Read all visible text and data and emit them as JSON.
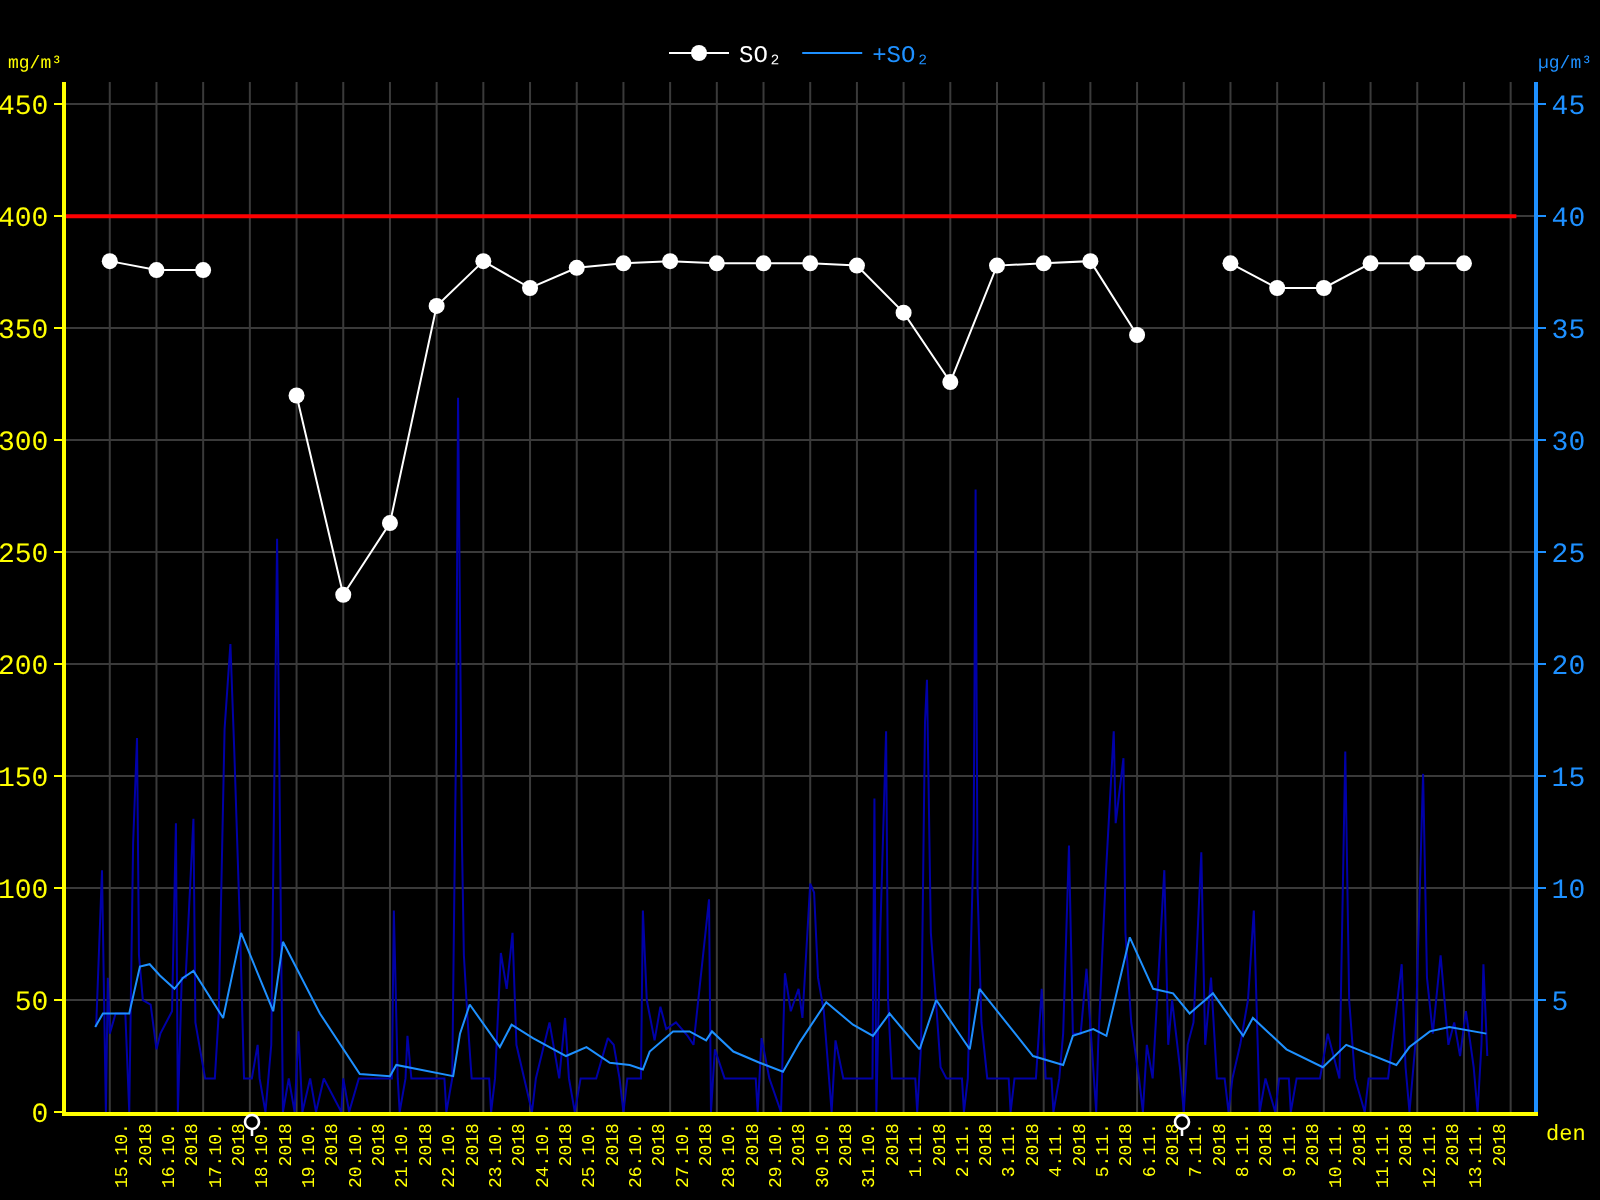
{
  "chart_data": {
    "type": "line",
    "xlabel": "den",
    "ylabel": "mg/m³",
    "y2label": "µg/m³",
    "xlim": [
      "2018-10-14T01:30",
      "2018-11-14T12:00"
    ],
    "ylim": [
      0,
      460
    ],
    "yticks": [
      0,
      50,
      100,
      150,
      200,
      250,
      300,
      350,
      400,
      450
    ],
    "y2lim": [
      0,
      46
    ],
    "y2ticks": [
      5,
      10,
      15,
      20,
      25,
      30,
      35,
      40,
      45
    ],
    "xticks": [
      {
        "value": "2018-10-15",
        "label": null
      },
      {
        "value": "2018-10-16",
        "label": null
      },
      {
        "value": "2018-10-17",
        "label": null
      },
      {
        "value": "2018-10-18",
        "label": null
      },
      {
        "value": "2018-10-19",
        "label": null
      },
      {
        "value": "2018-10-20",
        "label": null
      },
      {
        "value": "2018-10-21",
        "label": null
      },
      {
        "value": "2018-10-22",
        "label": null
      },
      {
        "value": "2018-10-23",
        "label": null
      },
      {
        "value": "2018-10-24",
        "label": null
      },
      {
        "value": "2018-10-25",
        "label": null
      },
      {
        "value": "2018-10-26",
        "label": null
      },
      {
        "value": "2018-10-27",
        "label": null
      },
      {
        "value": "2018-10-28",
        "label": null
      },
      {
        "value": "2018-10-29",
        "label": null
      },
      {
        "value": "2018-10-30",
        "label": null
      },
      {
        "value": "2018-10-31",
        "label": null
      },
      {
        "value": "2018-11-01",
        "label": null
      },
      {
        "value": "2018-11-02",
        "label": null
      },
      {
        "value": "2018-11-03",
        "label": null
      },
      {
        "value": "2018-11-04",
        "label": null
      },
      {
        "value": "2018-11-05",
        "label": null
      },
      {
        "value": "2018-11-06",
        "label": null
      },
      {
        "value": "2018-11-07",
        "label": null
      },
      {
        "value": "2018-11-08",
        "label": null
      },
      {
        "value": "2018-11-09",
        "label": null
      },
      {
        "value": "2018-11-10",
        "label": null
      },
      {
        "value": "2018-11-11",
        "label": null
      },
      {
        "value": "2018-11-12",
        "label": null
      },
      {
        "value": "2018-11-13",
        "label": null
      },
      {
        "value": "2018-11-14",
        "label": null
      },
      {
        "value": "2018-10-15T12:00",
        "label": "15.10. 2018"
      },
      {
        "value": "2018-10-16T12:00",
        "label": "16.10. 2018"
      },
      {
        "value": "2018-10-17T12:00",
        "label": "17.10. 2018"
      },
      {
        "value": "2018-10-18T12:00",
        "label": "18.10. 2018"
      },
      {
        "value": "2018-10-19T12:00",
        "label": "19.10. 2018"
      },
      {
        "value": "2018-10-20T12:00",
        "label": "20.10. 2018"
      },
      {
        "value": "2018-10-21T12:00",
        "label": "21.10. 2018"
      },
      {
        "value": "2018-10-22T12:00",
        "label": "22.10. 2018"
      },
      {
        "value": "2018-10-23T12:00",
        "label": "23.10. 2018"
      },
      {
        "value": "2018-10-24T12:00",
        "label": "24.10. 2018"
      },
      {
        "value": "2018-10-25T12:00",
        "label": "25.10. 2018"
      },
      {
        "value": "2018-10-26T12:00",
        "label": "26.10. 2018"
      },
      {
        "value": "2018-10-27T12:00",
        "label": "27.10. 2018"
      },
      {
        "value": "2018-10-28T12:00",
        "label": "28.10. 2018"
      },
      {
        "value": "2018-10-29T12:00",
        "label": "29.10. 2018"
      },
      {
        "value": "2018-10-30T12:00",
        "label": "30.10. 2018"
      },
      {
        "value": "2018-10-31T12:00",
        "label": "31.10. 2018"
      },
      {
        "value": "2018-11-01T12:00",
        "label": "1.11. 2018"
      },
      {
        "value": "2018-11-02T12:00",
        "label": "2.11. 2018"
      },
      {
        "value": "2018-11-03T12:00",
        "label": "3.11. 2018"
      },
      {
        "value": "2018-11-04T12:00",
        "label": "4.11. 2018"
      },
      {
        "value": "2018-11-05T12:00",
        "label": "5.11. 2018"
      },
      {
        "value": "2018-11-06T12:00",
        "label": "6.11. 2018"
      },
      {
        "value": "2018-11-07T12:00",
        "label": "7.11. 2018"
      },
      {
        "value": "2018-11-08T12:00",
        "label": "8.11. 2018"
      },
      {
        "value": "2018-11-09T12:00",
        "label": "9.11. 2018"
      },
      {
        "value": "2018-11-10T12:00",
        "label": "10.11. 2018"
      },
      {
        "value": "2018-11-11T12:00",
        "label": "11.11. 2018"
      },
      {
        "value": "2018-11-12T12:00",
        "label": "12.11. 2018"
      },
      {
        "value": "2018-11-13T12:00",
        "label": "13.11. 2018"
      }
    ],
    "grid": true,
    "legend": "top",
    "ref_lines": [
      {
        "axis": "y",
        "value": 400,
        "color": "#ff0000"
      }
    ],
    "series": [
      {
        "name": "SO₂",
        "color": "#ffffff",
        "marker": "circle",
        "x": [
          "2018-10-15",
          "2018-10-16",
          "2018-10-17",
          "2018-10-18",
          "2018-10-19",
          "2018-10-20",
          "2018-10-21",
          "2018-10-22",
          "2018-10-23",
          "2018-10-24",
          "2018-10-25",
          "2018-10-26",
          "2018-10-27",
          "2018-10-28",
          "2018-10-29",
          "2018-10-30",
          "2018-10-31",
          "2018-11-01",
          "2018-11-02",
          "2018-11-03",
          "2018-11-04",
          "2018-11-05",
          "2018-11-06",
          "2018-11-07",
          "2018-11-08",
          "2018-11-09",
          "2018-11-10",
          "2018-11-11",
          "2018-11-12",
          "2018-11-13"
        ],
        "values": [
          380,
          376,
          376,
          null,
          320,
          231,
          263,
          360,
          380,
          368,
          377,
          379,
          380,
          379,
          379,
          379,
          378,
          357,
          326,
          378,
          379,
          380,
          347,
          null,
          379,
          368,
          368,
          379,
          379,
          379
        ]
      },
      {
        "name": "+SO₂",
        "color": "#1e90ff",
        "axis": "y2",
        "x": [
          "2018-10-14T16:30",
          "2018-10-14T20:30",
          "2018-10-15T10:00",
          "2018-10-15T15:30",
          "2018-10-15T20:30",
          "2018-10-16T01:45",
          "2018-10-16T09:15",
          "2018-10-16T13:45",
          "2018-10-16T19:00",
          "2018-10-17T10:15",
          "2018-10-17T19:30",
          "2018-10-18T12:00",
          "2018-10-18T17:00",
          "2018-10-19T12:00",
          "2018-10-20T08:30",
          "2018-10-21T00:00",
          "2018-10-21T03:15",
          "2018-10-22T08:30",
          "2018-10-22T12:00",
          "2018-10-22T17:00",
          "2018-10-23T08:30",
          "2018-10-23T14:30",
          "2018-10-24T01:30",
          "2018-10-24T18:30",
          "2018-10-25T05:00",
          "2018-10-25T17:00",
          "2018-10-26T03:15",
          "2018-10-26T10:00",
          "2018-10-26T13:30",
          "2018-10-27T01:30",
          "2018-10-27T10:00",
          "2018-10-27T18:30",
          "2018-10-27T21:30",
          "2018-10-28T08:30",
          "2018-10-28T22:00",
          "2018-10-29T10:00",
          "2018-10-29T18:30",
          "2018-10-30T08:15",
          "2018-10-30T22:00",
          "2018-10-31T08:15",
          "2018-10-31T16:45",
          "2018-11-01T08:15",
          "2018-11-01T16:45",
          "2018-11-02T10:00",
          "2018-11-02T15:00",
          "2018-11-03T18:30",
          "2018-11-04T10:00",
          "2018-11-04T15:00",
          "2018-11-05T01:30",
          "2018-11-05T08:15",
          "2018-11-05T20:15",
          "2018-11-06T08:15",
          "2018-11-06T18:30",
          "2018-11-07T03:00",
          "2018-11-07T15:00",
          "2018-11-08T06:30",
          "2018-11-08T11:30",
          "2018-11-09T04:45",
          "2018-11-09T23:30",
          "2018-11-10T11:30",
          "2018-11-11T13:15",
          "2018-11-11T20:00",
          "2018-11-12T06:30",
          "2018-11-12T16:30",
          "2018-11-13T11:30"
        ],
        "values": [
          3.8,
          4.4,
          4.4,
          6.5,
          6.6,
          6.1,
          5.5,
          6.0,
          6.3,
          4.2,
          8.0,
          4.5,
          7.6,
          4.4,
          1.7,
          1.6,
          2.1,
          1.6,
          3.5,
          4.8,
          2.9,
          3.9,
          3.3,
          2.5,
          2.9,
          2.2,
          2.1,
          1.9,
          2.7,
          3.6,
          3.6,
          3.2,
          3.6,
          2.7,
          2.2,
          1.8,
          3.1,
          4.9,
          3.9,
          3.4,
          4.4,
          2.8,
          5.0,
          2.8,
          5.5,
          2.5,
          2.1,
          3.4,
          3.7,
          3.4,
          7.8,
          5.5,
          5.3,
          4.4,
          5.3,
          3.4,
          4.2,
          2.8,
          2.0,
          3.0,
          2.1,
          2.9,
          3.6,
          3.8,
          3.5
        ]
      },
      {
        "color": "#0000a8",
        "axis": "y2",
        "x": [
          "2018-10-14T17:00",
          "2018-10-14T20:00",
          "2018-10-14T22:00",
          "2018-10-14T23:00",
          "2018-10-15T00:00",
          "2018-10-15T03:00",
          "2018-10-15T08:00",
          "2018-10-15T10:00",
          "2018-10-15T12:00",
          "2018-10-15T14:00",
          "2018-10-15T15:00",
          "2018-10-15T17:00",
          "2018-10-15T21:00",
          "2018-10-16T00:00",
          "2018-10-16T02:00",
          "2018-10-16T08:00",
          "2018-10-16T10:00",
          "2018-10-16T11:00",
          "2018-10-16T13:00",
          "2018-10-16T15:00",
          "2018-10-16T19:00",
          "2018-10-16T20:00",
          "2018-10-16T22:00",
          "2018-10-17T01:00",
          "2018-10-17T06:00",
          "2018-10-17T08:00",
          "2018-10-17T11:00",
          "2018-10-17T14:00",
          "2018-10-17T16:00",
          "2018-10-17T19:00",
          "2018-10-17T21:00",
          "2018-10-18T01:00",
          "2018-10-18T04:00",
          "2018-10-18T05:00",
          "2018-10-18T08:00",
          "2018-10-18T11:00",
          "2018-10-18T14:00",
          "2018-10-18T16:00",
          "2018-10-18T17:00",
          "2018-10-18T20:00",
          "2018-10-18T23:00",
          "2018-10-19T01:00",
          "2018-10-19T03:00",
          "2018-10-19T07:00",
          "2018-10-19T10:00",
          "2018-10-19T14:00",
          "2018-10-19T23:00",
          "2018-10-20T00:00",
          "2018-10-20T03:00",
          "2018-10-20T08:00",
          "2018-10-21T01:00",
          "2018-10-21T02:00",
          "2018-10-21T04:00",
          "2018-10-21T05:00",
          "2018-10-21T08:00",
          "2018-10-21T09:00",
          "2018-10-21T11:00",
          "2018-10-22T04:00",
          "2018-10-22T05:00",
          "2018-10-22T08:00",
          "2018-10-22T10:00",
          "2018-10-22T11:00",
          "2018-10-22T13:00",
          "2018-10-22T14:00",
          "2018-10-22T16:00",
          "2018-10-22T18:00",
          "2018-10-23T03:00",
          "2018-10-23T04:00",
          "2018-10-23T06:00",
          "2018-10-23T09:00",
          "2018-10-23T12:00",
          "2018-10-23T15:00",
          "2018-10-23T17:00",
          "2018-10-23T21:00",
          "2018-10-24T01:00",
          "2018-10-24T03:00",
          "2018-10-24T10:00",
          "2018-10-24T15:00",
          "2018-10-24T18:00",
          "2018-10-24T20:00",
          "2018-10-24T23:00",
          "2018-10-25T02:00",
          "2018-10-25T10:00",
          "2018-10-25T16:00",
          "2018-10-25T19:00",
          "2018-10-25T22:00",
          "2018-10-26T00:00",
          "2018-10-26T02:00",
          "2018-10-26T09:00",
          "2018-10-26T10:00",
          "2018-10-26T12:00",
          "2018-10-26T16:00",
          "2018-10-26T19:00",
          "2018-10-26T22:00",
          "2018-10-27T03:00",
          "2018-10-27T09:00",
          "2018-10-27T12:00",
          "2018-10-27T20:00",
          "2018-10-27T21:00",
          "2018-10-27T23:00",
          "2018-10-28T04:00",
          "2018-10-28T20:00",
          "2018-10-28T21:00",
          "2018-10-28T23:00",
          "2018-10-29T03:00",
          "2018-10-29T09:00",
          "2018-10-29T11:00",
          "2018-10-29T14:00",
          "2018-10-29T18:00",
          "2018-10-29T20:00",
          "2018-10-30T00:00",
          "2018-10-30T02:00",
          "2018-10-30T04:00",
          "2018-10-30T07:00",
          "2018-10-30T11:00",
          "2018-10-30T13:00",
          "2018-10-30T17:00",
          "2018-10-31T08:00",
          "2018-10-31T09:00",
          "2018-10-31T10:00",
          "2018-10-31T12:00",
          "2018-10-31T15:00",
          "2018-10-31T16:00",
          "2018-10-31T18:00",
          "2018-11-01T06:00",
          "2018-11-01T07:00",
          "2018-11-01T09:00",
          "2018-11-01T11:00",
          "2018-11-01T12:00",
          "2018-11-01T14:00",
          "2018-11-01T17:00",
          "2018-11-01T19:00",
          "2018-11-01T22:00",
          "2018-11-02T06:00",
          "2018-11-02T07:00",
          "2018-11-02T09:00",
          "2018-11-02T12:00",
          "2018-11-02T13:00",
          "2018-11-02T14:00",
          "2018-11-02T16:00",
          "2018-11-02T19:00",
          "2018-11-03T06:00",
          "2018-11-03T07:00",
          "2018-11-03T09:00",
          "2018-11-03T20:00",
          "2018-11-03T23:00",
          "2018-11-04T01:00",
          "2018-11-04T04:00",
          "2018-11-04T05:00",
          "2018-11-04T08:00",
          "2018-11-04T10:00",
          "2018-11-04T13:00",
          "2018-11-04T15:00",
          "2018-11-04T19:00",
          "2018-11-04T22:00",
          "2018-11-05T03:00",
          "2018-11-05T04:00",
          "2018-11-05T08:00",
          "2018-11-05T12:00",
          "2018-11-05T13:00",
          "2018-11-05T17:00",
          "2018-11-05T18:00",
          "2018-11-05T21:00",
          "2018-11-06T01:00",
          "2018-11-06T03:00",
          "2018-11-06T05:00",
          "2018-11-06T08:00",
          "2018-11-06T14:00",
          "2018-11-06T16:00",
          "2018-11-06T18:00",
          "2018-11-06T22:00",
          "2018-11-07T00:00",
          "2018-11-07T02:00",
          "2018-11-07T05:00",
          "2018-11-07T09:00",
          "2018-11-07T11:00",
          "2018-11-07T14:00",
          "2018-11-07T17:00",
          "2018-11-07T21:00",
          "2018-11-07T23:00",
          "2018-11-08T01:00",
          "2018-11-08T05:00",
          "2018-11-08T09:00",
          "2018-11-08T12:00",
          "2018-11-08T14:00",
          "2018-11-08T15:00",
          "2018-11-08T18:00",
          "2018-11-08T23:00",
          "2018-11-09T01:00",
          "2018-11-09T06:00",
          "2018-11-09T07:00",
          "2018-11-09T10:00",
          "2018-11-09T22:00",
          "2018-11-10T02:00",
          "2018-11-10T08:00",
          "2018-11-10T10:00",
          "2018-11-10T11:00",
          "2018-11-10T13:00",
          "2018-11-10T16:00",
          "2018-11-10T21:00",
          "2018-11-10T23:00",
          "2018-11-11T09:00",
          "2018-11-11T16:00",
          "2018-11-11T18:00",
          "2018-11-11T20:00",
          "2018-11-11T23:00",
          "2018-11-12T03:00",
          "2018-11-12T05:00",
          "2018-11-12T08:00",
          "2018-11-12T12:00",
          "2018-11-12T16:00",
          "2018-11-12T19:00",
          "2018-11-12T22:00",
          "2018-11-13T01:00",
          "2018-11-13T05:00",
          "2018-11-13T07:00",
          "2018-11-13T09:00",
          "2018-11-13T10:00",
          "2018-11-13T12:00"
        ],
        "values": [
          3.8,
          10.8,
          0,
          6,
          3.5,
          4.4,
          4.4,
          0,
          12,
          16.7,
          7,
          5,
          4.8,
          2.8,
          3.5,
          4.5,
          12.9,
          0,
          6,
          6,
          13.1,
          4,
          3,
          1.5,
          1.5,
          4.4,
          17.1,
          20.9,
          16.1,
          8,
          1.5,
          1.5,
          3,
          1.5,
          0,
          3,
          25.6,
          8,
          0,
          1.5,
          0,
          3.6,
          0,
          1.5,
          0,
          1.5,
          0,
          1.5,
          0,
          1.5,
          1.5,
          9,
          1.5,
          0,
          1.5,
          3.4,
          1.5,
          1.5,
          0,
          1.5,
          16.7,
          31.9,
          12.1,
          7,
          4,
          1.5,
          1.5,
          0,
          1.5,
          7.1,
          5.5,
          8,
          3,
          1.5,
          0,
          1.5,
          4,
          1.5,
          4.2,
          1.5,
          0,
          1.5,
          1.5,
          3.3,
          3,
          1.5,
          0,
          1.5,
          1.5,
          9,
          5,
          3.2,
          4.7,
          3.7,
          4,
          3.4,
          3,
          9.5,
          0,
          2.8,
          1.5,
          1.5,
          0,
          3.3,
          1.5,
          0,
          6.2,
          4.5,
          5.5,
          4.2,
          10.2,
          9.8,
          6,
          4.5,
          0,
          3.2,
          1.5,
          1.5,
          14,
          0,
          8,
          17,
          5,
          1.5,
          1.5,
          0,
          3,
          17.4,
          19.3,
          8,
          4.5,
          2,
          1.5,
          1.5,
          0,
          1.5,
          12.3,
          27.8,
          10,
          4,
          1.5,
          1.5,
          0,
          1.5,
          1.5,
          5.5,
          1.5,
          1.5,
          0,
          1.5,
          3.5,
          11.9,
          3.5,
          3.5,
          6.4,
          0,
          3,
          10.7,
          17,
          12.9,
          15.8,
          8,
          4,
          1.5,
          0,
          3,
          1.5,
          10.8,
          3,
          5,
          2,
          0,
          3,
          4,
          11.6,
          3,
          6,
          1.5,
          1.5,
          0,
          1.5,
          3,
          5,
          9,
          3,
          0,
          1.5,
          0,
          1.5,
          1.5,
          0,
          1.5,
          1.5,
          3.5,
          1.5,
          11.2,
          16.1,
          5,
          1.5,
          0,
          1.5,
          1.5,
          6.6,
          2,
          0,
          3,
          15.1,
          6,
          3.5,
          7,
          3,
          4,
          2.5,
          4.5,
          2,
          0,
          3,
          6.6,
          2.5
        ]
      }
    ]
  }
}
